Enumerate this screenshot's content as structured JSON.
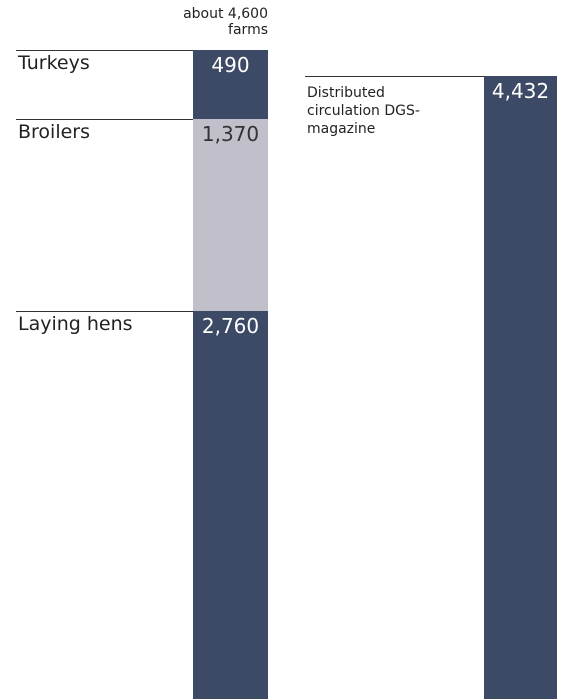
{
  "chart_data": {
    "type": "stacked-bar",
    "stacks": [
      {
        "annotation": "about 4,600 farms",
        "segments": [
          {
            "name": "Turkeys",
            "color": "#3d4a66",
            "value": 490,
            "value_label": "490"
          },
          {
            "name": "Broilers",
            "color": "#c0bfca",
            "value": 1370,
            "value_label": "1,370"
          },
          {
            "name": "Laying hens",
            "color": "#3d4a66",
            "value": 2760,
            "value_label": "2,760"
          }
        ]
      },
      {
        "segments": [
          {
            "name": "Distributed circulation DGS-magazine",
            "color": "#3d4a66",
            "value": 4432,
            "value_label": "4,432"
          }
        ]
      }
    ]
  }
}
